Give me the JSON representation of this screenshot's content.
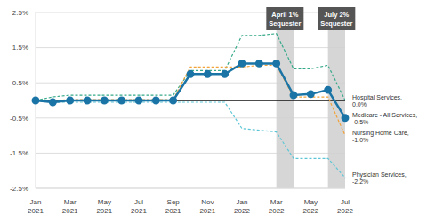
{
  "chart_data": {
    "type": "line",
    "categories": [
      "Jan 2021",
      null,
      "Mar 2021",
      null,
      "May 2021",
      null,
      "Jul 2021",
      null,
      "Sep 2021",
      null,
      "Nov 2021",
      null,
      "Jan 2022",
      null,
      "Mar 2022",
      null,
      "May 2022",
      null,
      "Jul 2022"
    ],
    "series": [
      {
        "name": "Hospital Services, 0.0%",
        "color": "#35a98a",
        "line_style": "dashed",
        "marker": "none",
        "values": [
          0,
          0.1,
          0.15,
          0.15,
          0.15,
          0.15,
          0.15,
          0.15,
          0.15,
          0.85,
          0.85,
          0.85,
          1.85,
          1.85,
          1.9,
          0.9,
          0.9,
          1.0,
          0.0
        ]
      },
      {
        "name": "Nursing Home Care, -1.0%",
        "color": "#f2a33a",
        "line_style": "dashed",
        "marker": "none",
        "values": [
          0,
          0,
          0.02,
          0.02,
          0.02,
          0.02,
          0.02,
          0.02,
          0.02,
          0.95,
          0.95,
          0.95,
          0.95,
          1.0,
          1.0,
          0.1,
          0.1,
          0.1,
          -1.0
        ]
      },
      {
        "name": "Physician Services, -2.2%",
        "color": "#5cc6d6",
        "line_style": "dashed",
        "marker": "none",
        "values": [
          0,
          -0.05,
          -0.05,
          -0.05,
          -0.05,
          -0.05,
          -0.05,
          -0.05,
          -0.05,
          -0.05,
          -0.05,
          -0.05,
          -0.8,
          -0.85,
          -0.9,
          -1.65,
          -1.65,
          -1.65,
          -2.2
        ]
      },
      {
        "name": "Medicare - All Services, -0.5%",
        "color": "#1b74a6",
        "line_style": "solid",
        "marker": "circle",
        "values": [
          0,
          -0.05,
          0,
          0,
          0,
          0,
          0,
          0,
          0,
          0.75,
          0.75,
          0.75,
          1.05,
          1.05,
          1.05,
          0.15,
          0.18,
          0.3,
          -0.5
        ]
      }
    ],
    "ylim": [
      -2.5,
      2.5
    ],
    "yticks": [
      {
        "value": -2.5,
        "label": "-2.5%"
      },
      {
        "value": -1.5,
        "label": "-1.5%"
      },
      {
        "value": -0.5,
        "label": "-0.5%"
      },
      {
        "value": 0.5,
        "label": "0.5%"
      },
      {
        "value": 1.5,
        "label": "1.5%"
      },
      {
        "value": 2.5,
        "label": "2.5%"
      }
    ],
    "grid": true,
    "reference_lines": [
      0
    ],
    "annotations": [
      {
        "text": "April 1% Sequester",
        "x_range": [
          14,
          15
        ]
      },
      {
        "text": "July 2% Sequester",
        "x_range": [
          17,
          18
        ]
      }
    ]
  }
}
